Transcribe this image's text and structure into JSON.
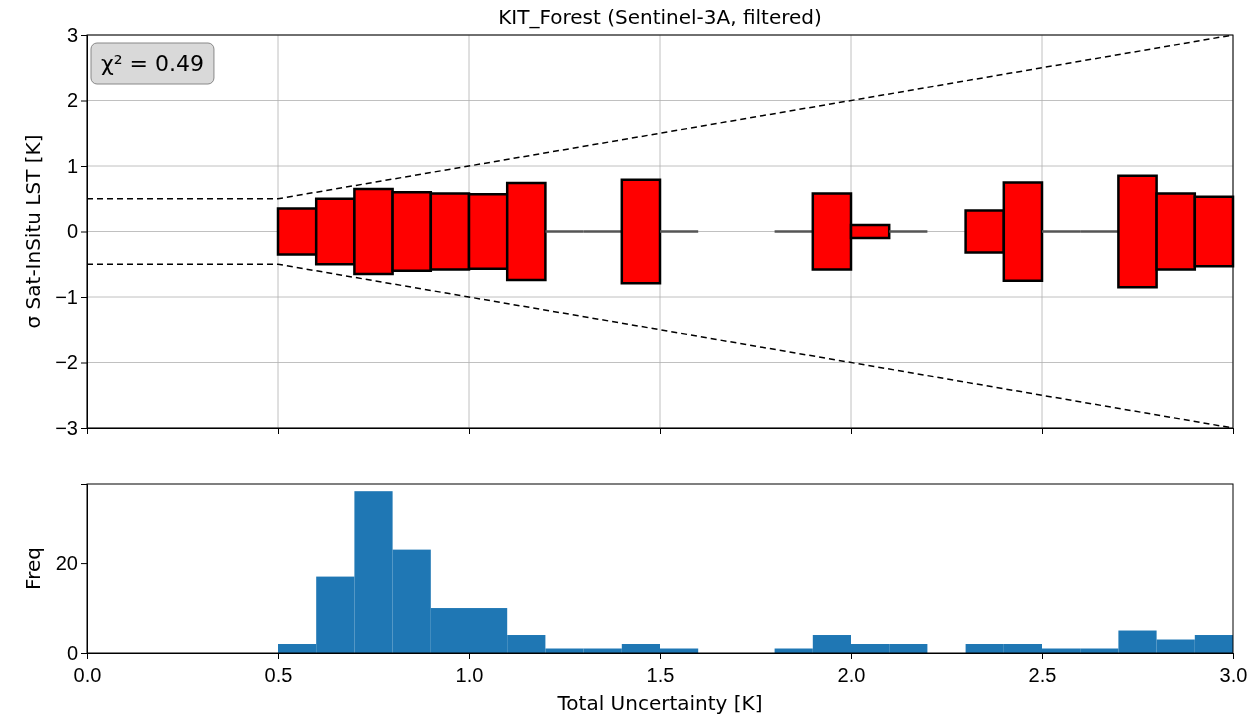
{
  "chart_data": [
    {
      "type": "bar",
      "title": "KIT_Forest (Sentinel-3A, filtered)",
      "ylabel": "σ Sat-InSitu LST [K]",
      "xlim": [
        0,
        3
      ],
      "xticks": [
        0,
        0.5,
        1,
        1.5,
        2,
        2.5,
        3
      ],
      "ylim": [
        -3,
        3
      ],
      "yticks": [
        -3,
        -2,
        -1,
        0,
        1,
        2,
        3
      ],
      "grid": true,
      "tick_labels": "y",
      "annotations": [
        "χ² = 0.49"
      ],
      "series": [
        {
          "colors": [
            "#ff0000",
            "#ff0000",
            "#ff0000",
            "#ff0000",
            "#ff0000",
            "#ff0000",
            "#ff0000",
            "#555555",
            "#555555",
            "#ff0000",
            "#555555",
            null,
            null,
            "#555555",
            "#ff0000",
            "#ff0000",
            "#555555",
            null,
            "#ff0000",
            "#ff0000",
            "#555555",
            "#555555",
            "#ff0000",
            "#ff0000",
            "#ff0000"
          ],
          "x": [
            0.55,
            0.65,
            0.75,
            0.85,
            0.95,
            1.05,
            1.15,
            1.25,
            1.35,
            1.45,
            1.55,
            1.65,
            1.75,
            1.85,
            1.95,
            2.05,
            2.15,
            2.25,
            2.35,
            2.45,
            2.55,
            2.65,
            2.75,
            2.85,
            2.95
          ],
          "base": [
            -0.35,
            -0.5,
            -0.65,
            -0.6,
            -0.58,
            -0.57,
            -0.74,
            0,
            0,
            -0.79,
            0,
            null,
            null,
            0,
            -0.58,
            -0.1,
            0,
            null,
            -0.32,
            -0.75,
            0,
            0,
            -0.85,
            -0.58,
            -0.53
          ],
          "values": [
            0.7,
            1.0,
            1.3,
            1.2,
            1.16,
            1.14,
            1.48,
            0,
            0,
            1.58,
            0,
            null,
            null,
            0,
            1.16,
            0.2,
            0,
            null,
            0.64,
            1.5,
            0,
            0,
            1.7,
            1.16,
            1.06
          ]
        },
        {
          "type": "line",
          "color": "#000000",
          "line_style": "dashed",
          "marker": "none",
          "x": [
            0,
            0.5,
            3
          ],
          "values": [
            0.5,
            0.5,
            3
          ]
        },
        {
          "type": "line",
          "color": "#000000",
          "line_style": "dashed",
          "marker": "none",
          "x": [
            0,
            0.5,
            3
          ],
          "values": [
            -0.5,
            -0.5,
            -3
          ]
        }
      ]
    },
    {
      "type": "histogram",
      "xlabel": "Total Uncertainty [K]",
      "ylabel": "Freq",
      "color": "#1f77b4",
      "xlim": [
        0,
        3
      ],
      "xticks": [
        {
          "value": 0,
          "label": "0.0"
        },
        0.5,
        {
          "value": 1,
          "label": "1.0"
        },
        1.5,
        {
          "value": 2,
          "label": "2.0"
        },
        2.5,
        {
          "value": 3,
          "label": "3.0"
        }
      ],
      "ylim": [
        0,
        37.6
      ],
      "yticks": [
        0,
        20
      ],
      "bins": [
        0.5,
        0.6,
        0.7,
        0.8,
        0.9,
        1.0,
        1.1,
        1.2,
        1.3,
        1.4,
        1.5,
        1.6,
        1.7,
        1.8,
        1.9,
        2.0,
        2.1,
        2.2,
        2.3,
        2.4,
        2.5,
        2.6,
        2.7,
        2.8,
        2.9,
        3.0
      ],
      "values": [
        2,
        17,
        36,
        23,
        10,
        10,
        4,
        1,
        1,
        2,
        1,
        0,
        0,
        1,
        4,
        2,
        2,
        0,
        2,
        2,
        1,
        1,
        5,
        3,
        4
      ]
    }
  ]
}
